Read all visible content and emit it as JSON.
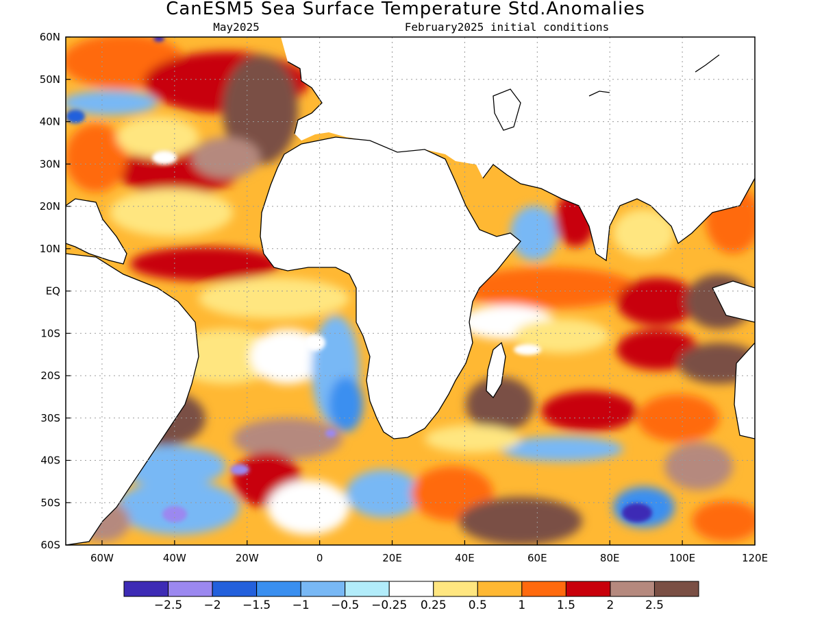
{
  "title": "CanESM5 Sea Surface Temperature Std.Anomalies",
  "subtitle_left": "May2025",
  "subtitle_right": "February2025 initial conditions",
  "map": {
    "lon_range": [
      -70,
      120
    ],
    "lat_range": [
      -60,
      60
    ],
    "gridlines": true,
    "lat_ticks": [
      "60N",
      "50N",
      "40N",
      "30N",
      "20N",
      "10N",
      "EQ",
      "10S",
      "20S",
      "30S",
      "40S",
      "50S",
      "60S"
    ],
    "lon_ticks": [
      "60W",
      "40W",
      "20W",
      "0",
      "20E",
      "40E",
      "60E",
      "80E",
      "100E",
      "120E"
    ]
  },
  "colorbar": {
    "colors": [
      "#3d2bb5",
      "#9b88f0",
      "#2360dc",
      "#3a8ff0",
      "#78b8f5",
      "#b2ecfa",
      "#ffffff",
      "#ffe680",
      "#ffb833",
      "#ff6a0e",
      "#c8000b",
      "#b5897e",
      "#7a4f44"
    ],
    "labels": [
      "−2.5",
      "−2",
      "−1.5",
      "−1",
      "−0.5",
      "−0.25",
      "0.25",
      "0.5",
      "1",
      "1.5",
      "2",
      "2.5"
    ]
  }
}
